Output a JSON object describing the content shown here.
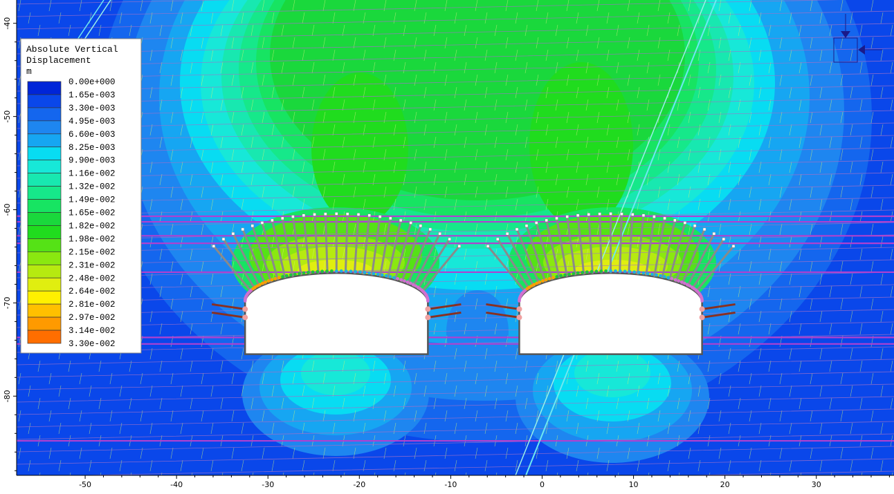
{
  "chart_data": {
    "type": "heatmap",
    "legend": {
      "title_lines": [
        "Absolute Vertical",
        "Displacement",
        "m"
      ],
      "levels": [
        "0.00e+000",
        "1.65e-003",
        "3.30e-003",
        "4.95e-003",
        "6.60e-003",
        "8.25e-003",
        "9.90e-003",
        "1.16e-002",
        "1.32e-002",
        "1.49e-002",
        "1.65e-002",
        "1.82e-002",
        "1.98e-002",
        "2.15e-002",
        "2.31e-002",
        "2.48e-002",
        "2.64e-002",
        "2.81e-002",
        "2.97e-002",
        "3.14e-002",
        "3.30e-002"
      ],
      "colors": [
        "#0025d8",
        "#0a47ea",
        "#1466ee",
        "#1e86f0",
        "#16a6f2",
        "#08dcf2",
        "#17e8d8",
        "#18e8b0",
        "#16e88a",
        "#17e462",
        "#1ad83c",
        "#20dc1e",
        "#55e216",
        "#8ae810",
        "#b6ea10",
        "#e0ee10",
        "#fff000",
        "#ffc000",
        "#ff9a00",
        "#ff6e00",
        "#ff1800"
      ],
      "placement": "top-left"
    },
    "x_axis": {
      "ticks": [
        -50,
        -40,
        -30,
        -20,
        -10,
        0,
        10,
        20,
        30
      ],
      "range": [
        -57.5,
        38.5
      ]
    },
    "y_axis": {
      "ticks": [
        -40,
        -50,
        -60,
        -70,
        -80
      ],
      "range": [
        -37.5,
        -88.5
      ]
    },
    "tunnels": [
      {
        "x_left": -32.5,
        "x_right": -12.5,
        "floor": -75.5,
        "springline": -70.0,
        "crown": -66.8
      },
      {
        "x_left": -2.5,
        "x_right": 17.5,
        "floor": -75.5,
        "springline": -70.0,
        "crown": -66.8
      }
    ],
    "bedding_planes": [
      -60.7,
      -61.3,
      -62.8,
      -63.6,
      -66.7,
      -73.7,
      -74.4,
      -84.8
    ],
    "bolt_length": 6.5,
    "grid": false
  }
}
